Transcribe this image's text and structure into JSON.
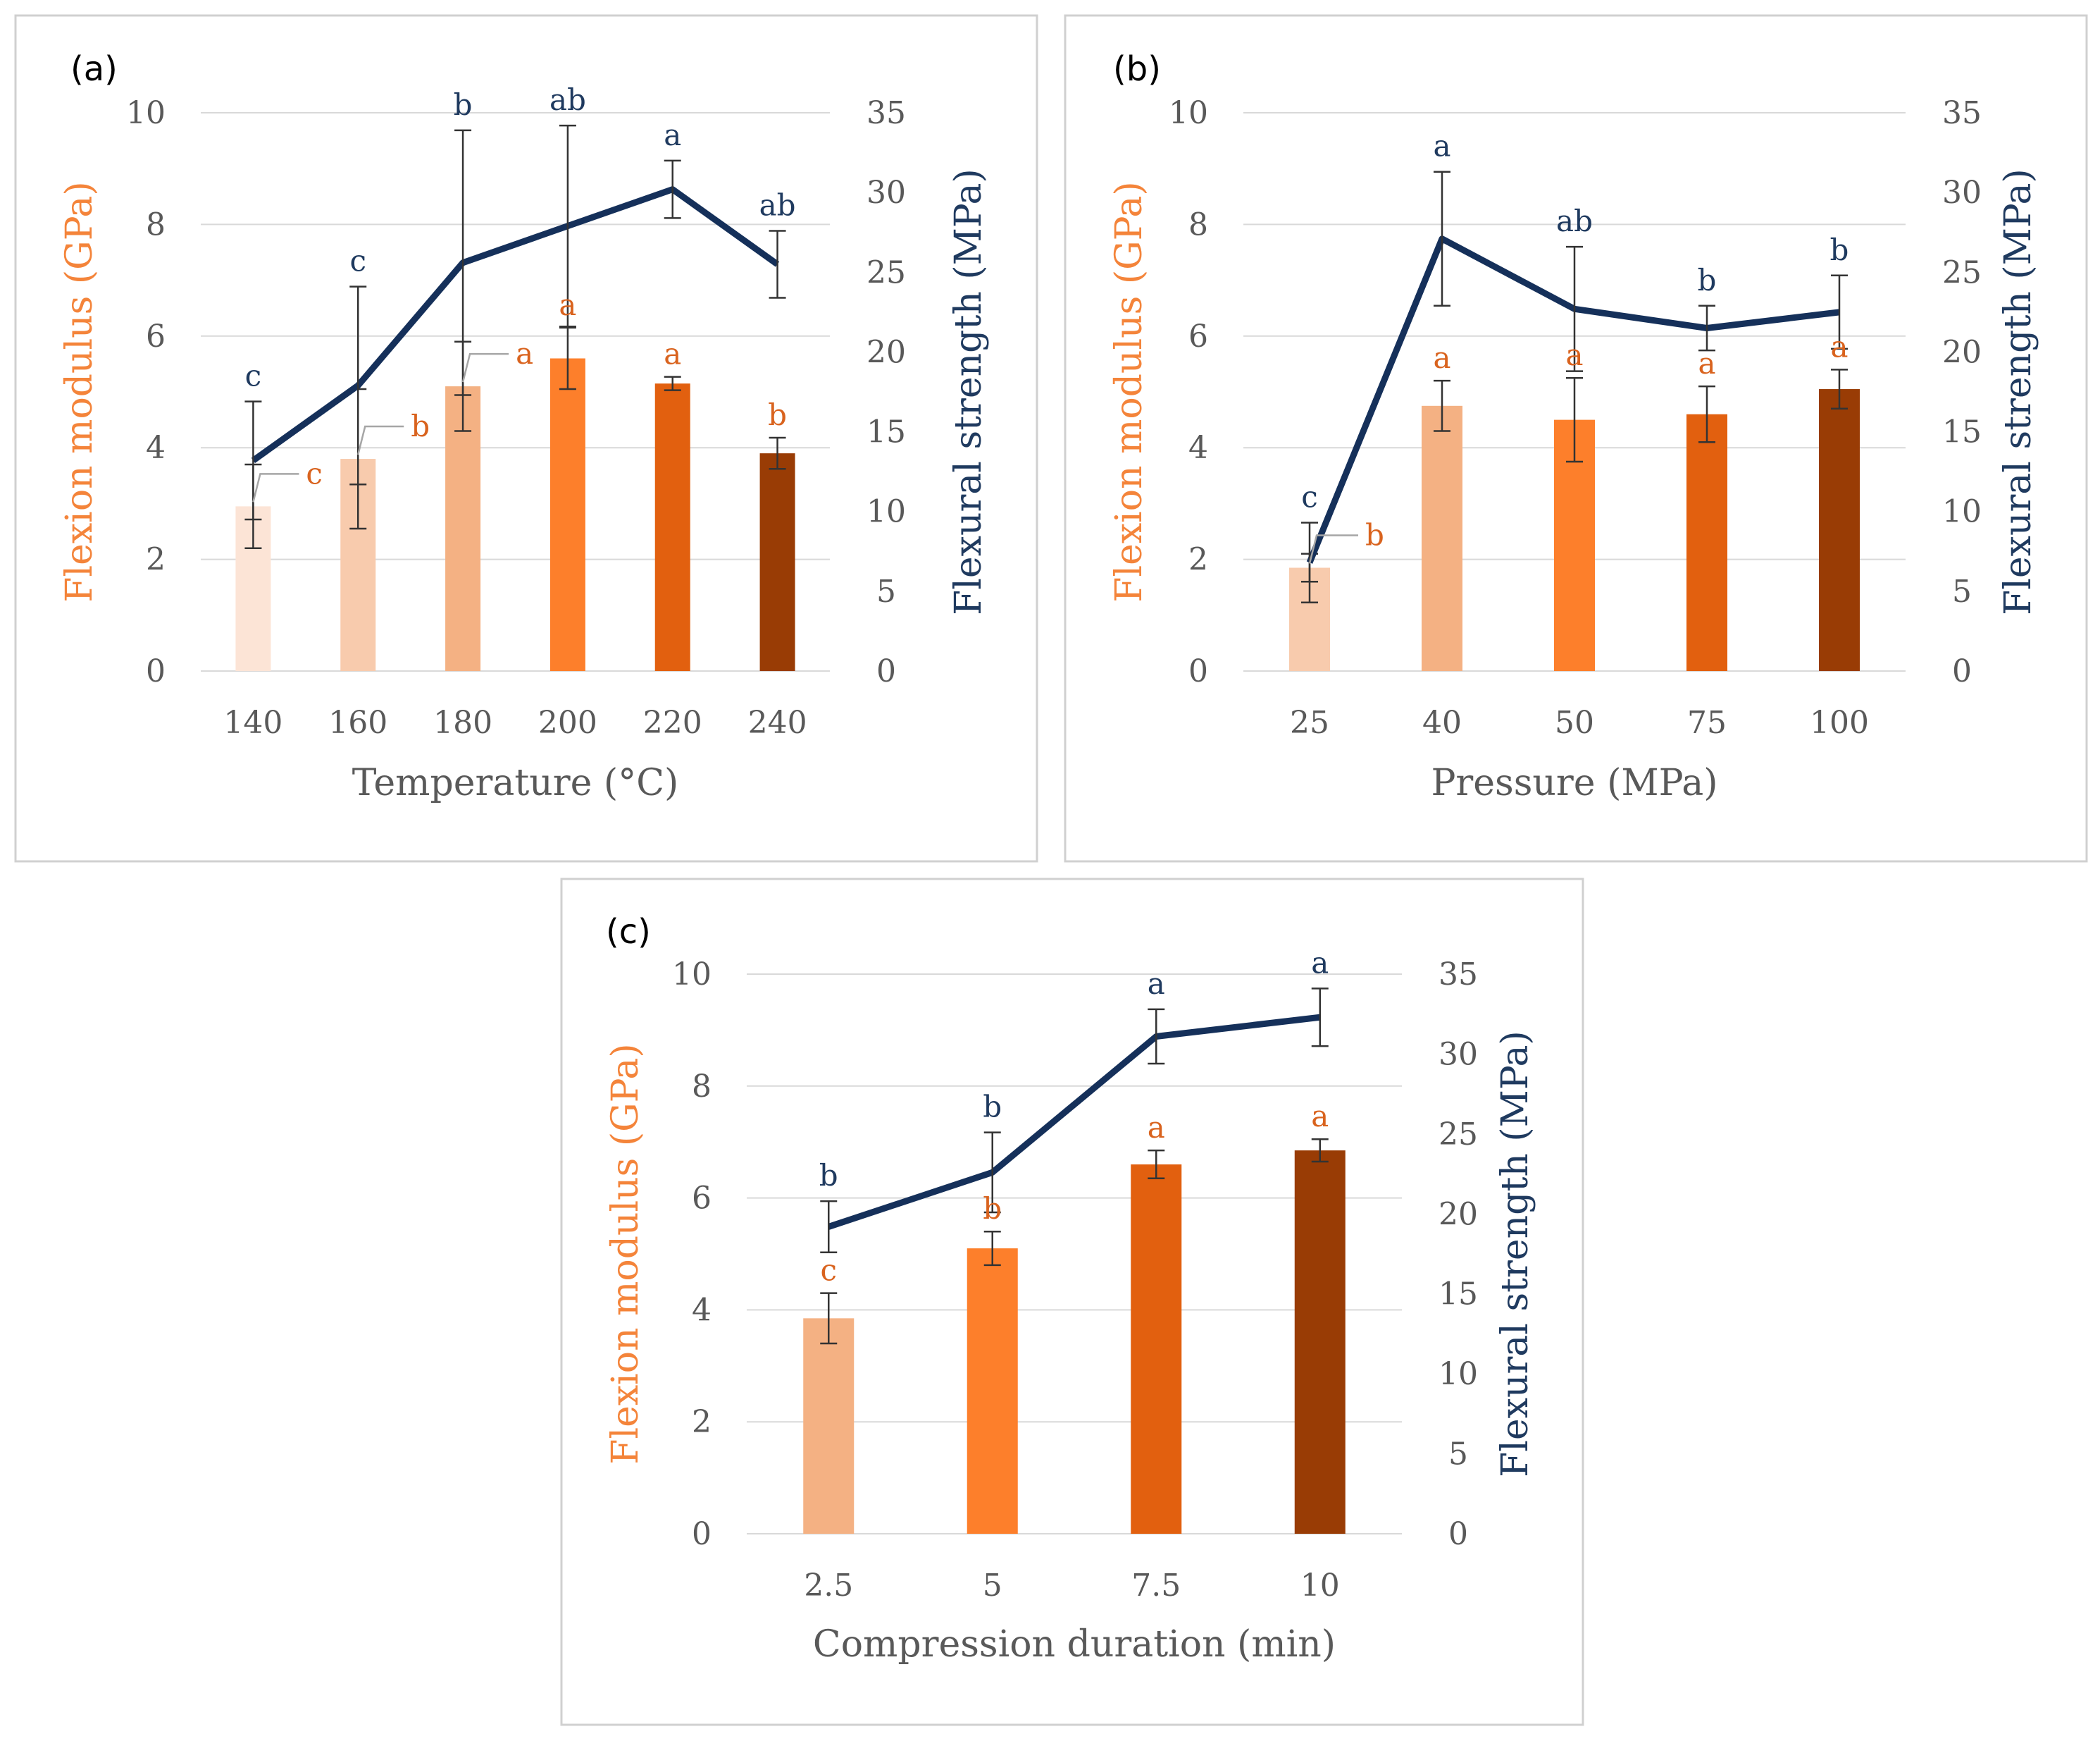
{
  "chart_data": [
    {
      "type": "bar+line",
      "panel_label": "(a)",
      "xlabel": "Temperature (°C)",
      "ylabel_left": "Flexion modulus (GPa)",
      "ylabel_right": "Flexural strength (MPa)",
      "ylim_left": [
        0,
        10
      ],
      "ylim_right": [
        0,
        35
      ],
      "left_ticks": [
        "0",
        "2",
        "4",
        "6",
        "8",
        "10"
      ],
      "right_ticks": [
        "0",
        "5",
        "10",
        "15",
        "20",
        "25",
        "30",
        "35"
      ],
      "categories": [
        "140",
        "160",
        "180",
        "200",
        "220",
        "240"
      ],
      "bar_colors": [
        "#fce4d6",
        "#f8cbad",
        "#f4b183",
        "#fd7f2b",
        "#e2600f",
        "#993c05"
      ],
      "line_color": "#15305a",
      "modulus": {
        "values": [
          2.95,
          3.8,
          5.1,
          5.6,
          5.15,
          3.9
        ],
        "errors": [
          0.75,
          1.25,
          0.8,
          0.55,
          0.12,
          0.28
        ],
        "letters": [
          "c",
          "b",
          "a",
          "a",
          "a",
          "b"
        ]
      },
      "strength": {
        "values": [
          13.2,
          17.9,
          25.6,
          27.9,
          30.2,
          25.5
        ],
        "errors": [
          3.7,
          6.2,
          8.3,
          6.3,
          1.8,
          2.1
        ],
        "letters": [
          "c",
          "c",
          "b",
          "ab",
          "a",
          "ab"
        ]
      }
    },
    {
      "type": "bar+line",
      "panel_label": "(b)",
      "xlabel": "Pressure (MPa)",
      "ylabel_left": "Flexion modulus (GPa)",
      "ylabel_right": "Flexural strength (MPa)",
      "ylim_left": [
        0,
        10
      ],
      "ylim_right": [
        0,
        35
      ],
      "left_ticks": [
        "0",
        "2",
        "4",
        "6",
        "8",
        "10"
      ],
      "right_ticks": [
        "0",
        "5",
        "10",
        "15",
        "20",
        "25",
        "30",
        "35"
      ],
      "categories": [
        "25",
        "40",
        "50",
        "75",
        "100"
      ],
      "bar_colors": [
        "#f8cbad",
        "#f4b183",
        "#fd7f2b",
        "#e2600f",
        "#993c05"
      ],
      "line_color": "#15305a",
      "modulus": {
        "values": [
          1.85,
          4.75,
          4.5,
          4.6,
          5.05
        ],
        "errors": [
          0.25,
          0.45,
          0.75,
          0.5,
          0.35
        ],
        "letters": [
          "b",
          "a",
          "a",
          "a",
          "a"
        ]
      },
      "strength": {
        "values": [
          6.8,
          27.1,
          22.7,
          21.5,
          22.5
        ],
        "errors": [
          2.5,
          4.2,
          3.9,
          1.4,
          2.3
        ],
        "letters": [
          "c",
          "a",
          "ab",
          "b",
          "b"
        ]
      }
    },
    {
      "type": "bar+line",
      "panel_label": "(c)",
      "xlabel": "Compression duration (min)",
      "ylabel_left": "Flexion modulus (GPa)",
      "ylabel_right": "Flexural strength (MPa)",
      "ylim_left": [
        0,
        10
      ],
      "ylim_right": [
        0,
        35
      ],
      "left_ticks": [
        "0",
        "2",
        "4",
        "6",
        "8",
        "10"
      ],
      "right_ticks": [
        "0",
        "5",
        "10",
        "15",
        "20",
        "25",
        "30",
        "35"
      ],
      "categories": [
        "2.5",
        "5",
        "7.5",
        "10"
      ],
      "bar_colors": [
        "#f4b183",
        "#fd7f2b",
        "#e2600f",
        "#993c05"
      ],
      "line_color": "#15305a",
      "modulus": {
        "values": [
          3.85,
          5.1,
          6.6,
          6.85
        ],
        "errors": [
          0.45,
          0.3,
          0.25,
          0.2
        ],
        "letters": [
          "c",
          "b",
          "a",
          "a"
        ]
      },
      "strength": {
        "values": [
          19.2,
          22.6,
          31.1,
          32.3
        ],
        "errors": [
          1.6,
          2.5,
          1.7,
          1.8
        ],
        "letters": [
          "b",
          "b",
          "a",
          "a"
        ]
      }
    }
  ]
}
